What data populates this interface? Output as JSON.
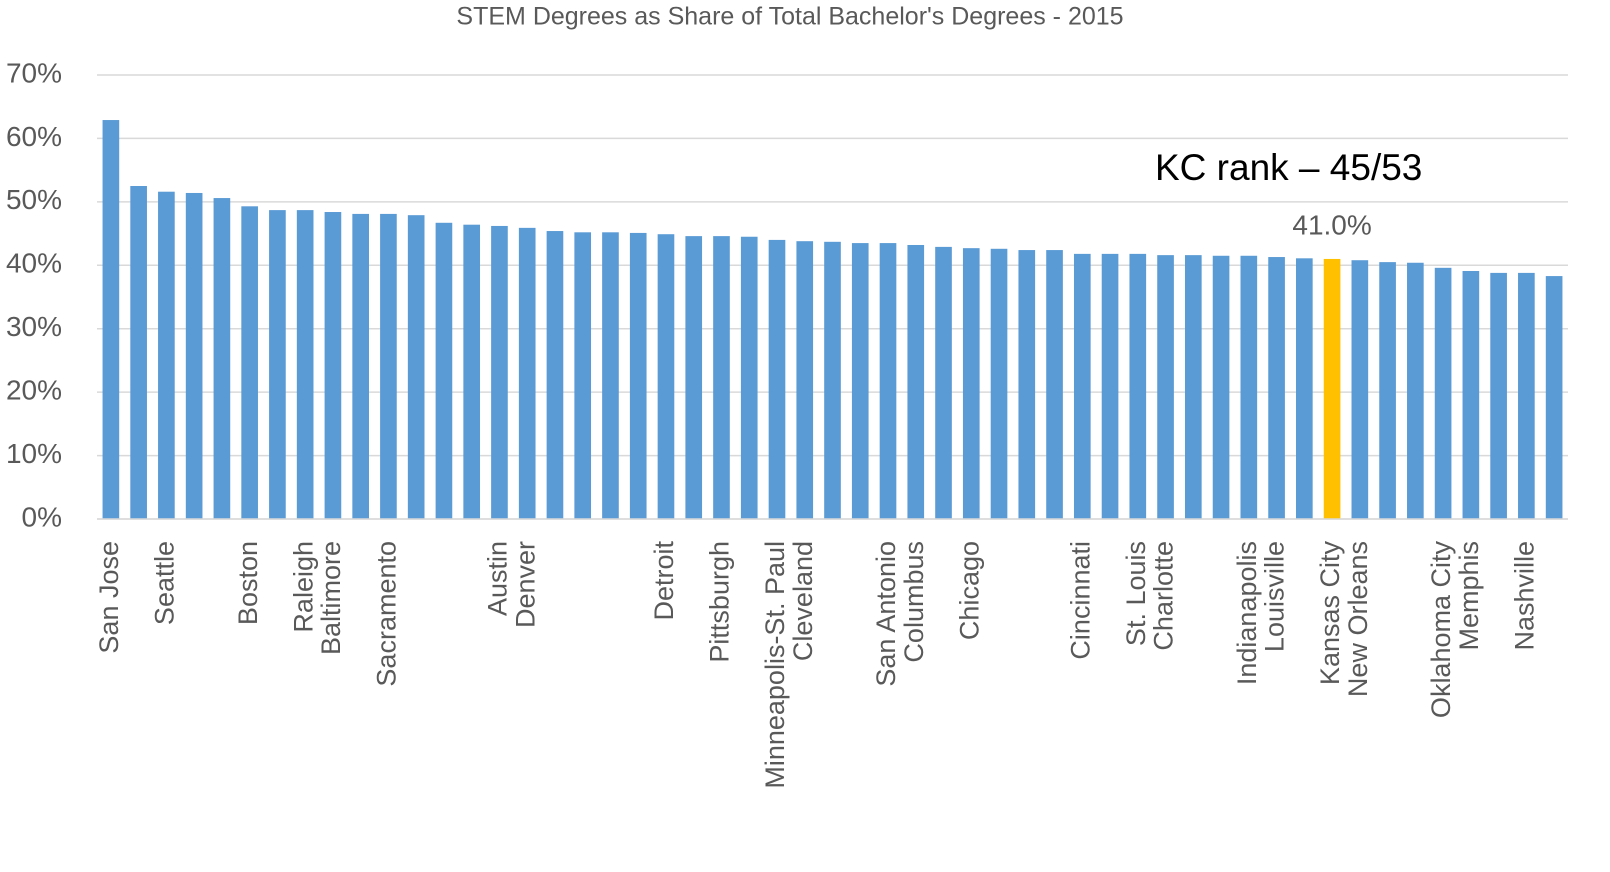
{
  "chart_data": {
    "type": "bar",
    "title": "STEM Degrees as Share of Total Bachelor's Degrees - 2015",
    "annotation": "KC rank – 45/53",
    "categories": [
      "San Jose",
      null,
      "Seattle",
      null,
      null,
      "Boston",
      null,
      "Raleigh",
      "Baltimore",
      null,
      "Sacramento",
      null,
      null,
      null,
      "Austin",
      "Denver",
      null,
      null,
      null,
      null,
      "Detroit",
      null,
      "Pittsburgh",
      null,
      "Minneapolis-St. Paul",
      "Cleveland",
      null,
      null,
      "San Antonio",
      "Columbus",
      null,
      "Chicago",
      null,
      null,
      null,
      "Cincinnati",
      null,
      "St. Louis",
      "Charlotte",
      null,
      null,
      "Indianapolis",
      "Louisville",
      null,
      "Kansas City",
      "New Orleans",
      null,
      null,
      "Oklahoma City",
      "Memphis",
      null,
      "Nashville",
      null
    ],
    "values": [
      62.9,
      52.5,
      51.6,
      51.4,
      50.6,
      49.3,
      48.7,
      48.7,
      48.4,
      48.1,
      48.1,
      47.9,
      46.7,
      46.4,
      46.2,
      45.9,
      45.4,
      45.2,
      45.2,
      45.1,
      44.9,
      44.6,
      44.6,
      44.5,
      44.0,
      43.8,
      43.7,
      43.5,
      43.5,
      43.2,
      42.9,
      42.7,
      42.6,
      42.4,
      42.4,
      41.8,
      41.8,
      41.8,
      41.6,
      41.6,
      41.5,
      41.5,
      41.3,
      41.1,
      41.0,
      40.8,
      40.5,
      40.4,
      39.6,
      39.1,
      38.8,
      38.8,
      38.3
    ],
    "value_labels": [
      null,
      null,
      null,
      null,
      null,
      null,
      null,
      null,
      null,
      null,
      null,
      null,
      null,
      null,
      null,
      null,
      null,
      null,
      null,
      null,
      null,
      null,
      null,
      null,
      null,
      null,
      null,
      null,
      null,
      null,
      null,
      null,
      null,
      null,
      null,
      null,
      null,
      null,
      null,
      null,
      null,
      null,
      null,
      null,
      "41.0%",
      null,
      null,
      null,
      null,
      null,
      null,
      null,
      null
    ],
    "colors": [
      "#5b9bd5",
      "#5b9bd5",
      "#5b9bd5",
      "#5b9bd5",
      "#5b9bd5",
      "#5b9bd5",
      "#5b9bd5",
      "#5b9bd5",
      "#5b9bd5",
      "#5b9bd5",
      "#5b9bd5",
      "#5b9bd5",
      "#5b9bd5",
      "#5b9bd5",
      "#5b9bd5",
      "#5b9bd5",
      "#5b9bd5",
      "#5b9bd5",
      "#5b9bd5",
      "#5b9bd5",
      "#5b9bd5",
      "#5b9bd5",
      "#5b9bd5",
      "#5b9bd5",
      "#5b9bd5",
      "#5b9bd5",
      "#5b9bd5",
      "#5b9bd5",
      "#5b9bd5",
      "#5b9bd5",
      "#5b9bd5",
      "#5b9bd5",
      "#5b9bd5",
      "#5b9bd5",
      "#5b9bd5",
      "#5b9bd5",
      "#5b9bd5",
      "#5b9bd5",
      "#5b9bd5",
      "#5b9bd5",
      "#5b9bd5",
      "#5b9bd5",
      "#5b9bd5",
      "#5b9bd5",
      "#ffc000",
      "#5b9bd5",
      "#5b9bd5",
      "#5b9bd5",
      "#5b9bd5",
      "#5b9bd5",
      "#5b9bd5",
      "#5b9bd5",
      "#5b9bd5"
    ],
    "ylim": [
      0,
      70
    ],
    "yticks": [
      {
        "value": 0,
        "label": "0%"
      },
      {
        "value": 10,
        "label": "10%"
      },
      {
        "value": 20,
        "label": "20%"
      },
      {
        "value": 30,
        "label": "30%"
      },
      {
        "value": 40,
        "label": "40%"
      },
      {
        "value": 50,
        "label": "50%"
      },
      {
        "value": 60,
        "label": "60%"
      },
      {
        "value": 70,
        "label": "70%"
      }
    ],
    "grid": true
  }
}
